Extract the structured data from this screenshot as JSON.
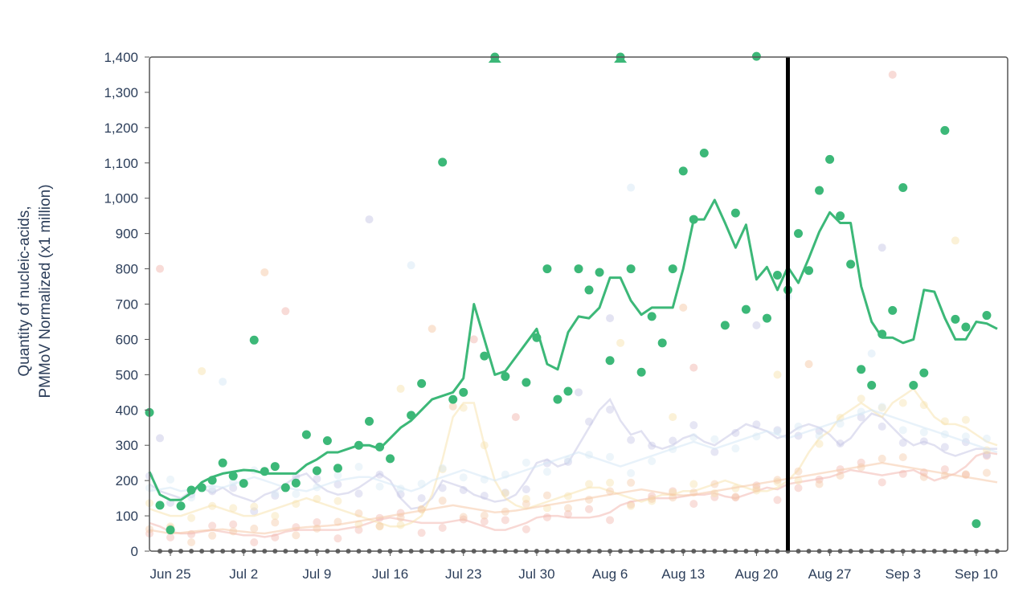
{
  "chart_data": {
    "type": "line",
    "ylabel_lines": [
      "Quantity of nucleic-acids,",
      "PMMoV Normalized (x1 million)"
    ],
    "xlabel": "",
    "ylim": [
      0,
      1400
    ],
    "yticks": [
      0,
      100,
      200,
      300,
      400,
      500,
      600,
      700,
      800,
      900,
      1000,
      1100,
      1200,
      1300,
      1400
    ],
    "ytick_labels": [
      "0",
      "100",
      "200",
      "300",
      "400",
      "500",
      "600",
      "700",
      "800",
      "900",
      "1,000",
      "1,100",
      "1,200",
      "1,300",
      "1,400"
    ],
    "xlim": [
      "2023-06-23",
      "2023-09-13"
    ],
    "xticks": [
      "2023-06-25",
      "2023-07-02",
      "2023-07-09",
      "2023-07-16",
      "2023-07-23",
      "2023-07-30",
      "2023-08-06",
      "2023-08-13",
      "2023-08-20",
      "2023-08-27",
      "2023-09-03",
      "2023-09-10"
    ],
    "xtick_labels": [
      "Jun 25",
      "Jul 2",
      "Jul 9",
      "Jul 16",
      "Jul 23",
      "Jul 30",
      "Aug 6",
      "Aug 13",
      "Aug 20",
      "Aug 27",
      "Sep 3",
      "Sep 10"
    ],
    "vertical_marker_date": "2023-08-23",
    "grid": false,
    "colors": {
      "highlight": "#3cb878",
      "marker_line": "#000000",
      "axis": "#555555",
      "text": "#2c3e5a",
      "zero_points": "#666666",
      "background_series": [
        "#f2b8b0",
        "#c8c8e6",
        "#f7e3b0",
        "#d6e8f5",
        "#f5c9a8"
      ]
    },
    "highlight_line": {
      "x": [
        "2023-06-23",
        "2023-06-24",
        "2023-06-25",
        "2023-06-26",
        "2023-06-27",
        "2023-06-28",
        "2023-06-29",
        "2023-06-30",
        "2023-07-01",
        "2023-07-02",
        "2023-07-03",
        "2023-07-04",
        "2023-07-05",
        "2023-07-06",
        "2023-07-07",
        "2023-07-08",
        "2023-07-09",
        "2023-07-10",
        "2023-07-11",
        "2023-07-12",
        "2023-07-13",
        "2023-07-14",
        "2023-07-15",
        "2023-07-16",
        "2023-07-17",
        "2023-07-18",
        "2023-07-19",
        "2023-07-20",
        "2023-07-21",
        "2023-07-22",
        "2023-07-23",
        "2023-07-24",
        "2023-07-25",
        "2023-07-26",
        "2023-07-27",
        "2023-07-28",
        "2023-07-29",
        "2023-07-30",
        "2023-07-31",
        "2023-08-01",
        "2023-08-02",
        "2023-08-03",
        "2023-08-04",
        "2023-08-05",
        "2023-08-06",
        "2023-08-07",
        "2023-08-08",
        "2023-08-09",
        "2023-08-10",
        "2023-08-11",
        "2023-08-12",
        "2023-08-13",
        "2023-08-14",
        "2023-08-15",
        "2023-08-16",
        "2023-08-17",
        "2023-08-18",
        "2023-08-19",
        "2023-08-20",
        "2023-08-21",
        "2023-08-22",
        "2023-08-23",
        "2023-08-24",
        "2023-08-25",
        "2023-08-26",
        "2023-08-27",
        "2023-08-28",
        "2023-08-29",
        "2023-08-30",
        "2023-08-31",
        "2023-09-01",
        "2023-09-02",
        "2023-09-03",
        "2023-09-04",
        "2023-09-05",
        "2023-09-06",
        "2023-09-07",
        "2023-09-08",
        "2023-09-09",
        "2023-09-10",
        "2023-09-11",
        "2023-09-12"
      ],
      "y": [
        225,
        160,
        145,
        145,
        165,
        195,
        210,
        220,
        225,
        230,
        228,
        220,
        220,
        220,
        220,
        245,
        260,
        280,
        280,
        290,
        300,
        300,
        290,
        320,
        350,
        370,
        400,
        430,
        440,
        450,
        490,
        700,
        600,
        500,
        510,
        550,
        590,
        630,
        530,
        515,
        620,
        665,
        660,
        690,
        775,
        775,
        710,
        670,
        690,
        690,
        690,
        800,
        940,
        940,
        995,
        930,
        860,
        925,
        770,
        805,
        740,
        805,
        760,
        830,
        905,
        960,
        930,
        930,
        750,
        650,
        605,
        605,
        590,
        600,
        740,
        735,
        660,
        600,
        600,
        650,
        645,
        630
      ]
    },
    "highlight_points": [
      {
        "x": "2023-06-23",
        "y": 393
      },
      {
        "x": "2023-06-24",
        "y": 130
      },
      {
        "x": "2023-06-25",
        "y": 60
      },
      {
        "x": "2023-06-26",
        "y": 128
      },
      {
        "x": "2023-06-27",
        "y": 173
      },
      {
        "x": "2023-06-28",
        "y": 180
      },
      {
        "x": "2023-06-29",
        "y": 201
      },
      {
        "x": "2023-06-30",
        "y": 250
      },
      {
        "x": "2023-07-01",
        "y": 213
      },
      {
        "x": "2023-07-02",
        "y": 192
      },
      {
        "x": "2023-07-03",
        "y": 598
      },
      {
        "x": "2023-07-04",
        "y": 226
      },
      {
        "x": "2023-07-05",
        "y": 240
      },
      {
        "x": "2023-07-06",
        "y": 180
      },
      {
        "x": "2023-07-07",
        "y": 193
      },
      {
        "x": "2023-07-08",
        "y": 330
      },
      {
        "x": "2023-07-09",
        "y": 228
      },
      {
        "x": "2023-07-10",
        "y": 313
      },
      {
        "x": "2023-07-11",
        "y": 235
      },
      {
        "x": "2023-07-13",
        "y": 300
      },
      {
        "x": "2023-07-14",
        "y": 368
      },
      {
        "x": "2023-07-15",
        "y": 295
      },
      {
        "x": "2023-07-16",
        "y": 262
      },
      {
        "x": "2023-07-18",
        "y": 385
      },
      {
        "x": "2023-07-19",
        "y": 475
      },
      {
        "x": "2023-07-21",
        "y": 1102
      },
      {
        "x": "2023-07-22",
        "y": 430
      },
      {
        "x": "2023-07-23",
        "y": 450
      },
      {
        "x": "2023-07-25",
        "y": 553
      },
      {
        "x": "2023-07-26",
        "y": 1400
      },
      {
        "x": "2023-07-27",
        "y": 495
      },
      {
        "x": "2023-07-29",
        "y": 478
      },
      {
        "x": "2023-07-30",
        "y": 605
      },
      {
        "x": "2023-07-31",
        "y": 800
      },
      {
        "x": "2023-08-01",
        "y": 430
      },
      {
        "x": "2023-08-02",
        "y": 453
      },
      {
        "x": "2023-08-03",
        "y": 800
      },
      {
        "x": "2023-08-04",
        "y": 740
      },
      {
        "x": "2023-08-05",
        "y": 790
      },
      {
        "x": "2023-08-06",
        "y": 540
      },
      {
        "x": "2023-08-07",
        "y": 1400
      },
      {
        "x": "2023-08-08",
        "y": 800
      },
      {
        "x": "2023-08-09",
        "y": 507
      },
      {
        "x": "2023-08-10",
        "y": 665
      },
      {
        "x": "2023-08-11",
        "y": 590
      },
      {
        "x": "2023-08-12",
        "y": 800
      },
      {
        "x": "2023-08-13",
        "y": 1077
      },
      {
        "x": "2023-08-14",
        "y": 940
      },
      {
        "x": "2023-08-15",
        "y": 1128
      },
      {
        "x": "2023-08-17",
        "y": 640
      },
      {
        "x": "2023-08-18",
        "y": 958
      },
      {
        "x": "2023-08-19",
        "y": 685
      },
      {
        "x": "2023-08-20",
        "y": 1402
      },
      {
        "x": "2023-08-21",
        "y": 660
      },
      {
        "x": "2023-08-22",
        "y": 782
      },
      {
        "x": "2023-08-23",
        "y": 740
      },
      {
        "x": "2023-08-24",
        "y": 900
      },
      {
        "x": "2023-08-25",
        "y": 795
      },
      {
        "x": "2023-08-26",
        "y": 1022
      },
      {
        "x": "2023-08-27",
        "y": 1110
      },
      {
        "x": "2023-08-28",
        "y": 950
      },
      {
        "x": "2023-08-29",
        "y": 813
      },
      {
        "x": "2023-08-30",
        "y": 515
      },
      {
        "x": "2023-08-31",
        "y": 470
      },
      {
        "x": "2023-09-01",
        "y": 615
      },
      {
        "x": "2023-09-02",
        "y": 682
      },
      {
        "x": "2023-09-03",
        "y": 1030
      },
      {
        "x": "2023-09-04",
        "y": 470
      },
      {
        "x": "2023-09-05",
        "y": 505
      },
      {
        "x": "2023-09-07",
        "y": 1192
      },
      {
        "x": "2023-09-08",
        "y": 657
      },
      {
        "x": "2023-09-09",
        "y": 635
      },
      {
        "x": "2023-09-10",
        "y": 78
      },
      {
        "x": "2023-09-11",
        "y": 668
      }
    ],
    "triangle_markers": [
      {
        "x": "2023-07-26",
        "y": 1400
      },
      {
        "x": "2023-08-07",
        "y": 1400
      }
    ],
    "background_series": [
      {
        "x_start": "2023-06-23",
        "y": [
          80,
          70,
          55,
          50,
          50,
          55,
          60,
          55,
          50,
          45,
          45,
          40,
          45,
          55,
          60,
          60,
          60,
          60,
          60,
          65,
          70,
          80,
          90,
          95,
          90,
          85,
          80,
          80,
          80,
          85,
          90,
          80,
          70,
          60,
          60,
          70,
          80,
          95,
          100,
          100,
          95,
          95,
          95,
          100,
          110,
          130,
          140,
          145,
          150,
          150,
          150,
          155,
          160,
          160,
          165,
          155,
          150,
          160,
          170,
          180,
          175,
          190,
          195,
          200,
          205,
          210,
          220,
          230,
          225,
          220,
          215,
          220,
          225,
          230,
          215,
          200,
          210,
          220,
          240,
          270,
          280,
          275
        ]
      },
      {
        "x_start": "2023-06-23",
        "y": [
          190,
          170,
          160,
          150,
          170,
          180,
          165,
          180,
          160,
          150,
          140,
          160,
          170,
          190,
          210,
          220,
          190,
          170,
          160,
          165,
          180,
          200,
          220,
          200,
          150,
          120,
          125,
          150,
          200,
          190,
          180,
          160,
          150,
          140,
          145,
          160,
          200,
          250,
          260,
          240,
          250,
          300,
          350,
          400,
          430,
          370,
          330,
          340,
          300,
          290,
          300,
          320,
          330,
          310,
          300,
          320,
          340,
          360,
          350,
          340,
          320,
          330,
          350,
          360,
          350,
          330,
          300,
          320,
          360,
          390,
          380,
          350,
          320,
          300,
          310,
          300,
          280,
          270,
          280,
          290,
          290,
          290
        ]
      },
      {
        "x_start": "2023-06-23",
        "y": [
          120,
          110,
          100,
          100,
          110,
          120,
          130,
          120,
          110,
          100,
          100,
          110,
          120,
          130,
          140,
          150,
          140,
          130,
          120,
          110,
          100,
          90,
          80,
          70,
          70,
          80,
          100,
          160,
          260,
          380,
          420,
          420,
          300,
          200,
          150,
          130,
          120,
          130,
          140,
          150,
          160,
          170,
          180,
          180,
          170,
          160,
          150,
          140,
          150,
          160,
          160,
          170,
          170,
          180,
          190,
          200,
          190,
          180,
          170,
          170,
          180,
          200,
          230,
          280,
          320,
          340,
          380,
          400,
          420,
          400,
          380,
          420,
          440,
          460,
          420,
          380,
          360,
          360,
          350,
          330,
          310,
          300
        ]
      },
      {
        "x_start": "2023-06-23",
        "y": [
          170,
          175,
          180,
          170,
          175,
          180,
          185,
          180,
          190,
          200,
          210,
          200,
          190,
          180,
          175,
          170,
          180,
          190,
          200,
          205,
          210,
          210,
          200,
          190,
          180,
          170,
          180,
          200,
          210,
          220,
          230,
          220,
          210,
          200,
          210,
          220,
          230,
          240,
          250,
          260,
          270,
          280,
          270,
          260,
          250,
          240,
          250,
          260,
          270,
          280,
          290,
          300,
          310,
          300,
          290,
          300,
          310,
          320,
          330,
          340,
          330,
          320,
          330,
          340,
          350,
          360,
          370,
          380,
          390,
          400,
          390,
          380,
          370,
          360,
          350,
          340,
          330,
          320,
          310,
          300,
          290,
          280
        ]
      },
      {
        "x_start": "2023-06-23",
        "y": [
          60,
          55,
          50,
          52,
          55,
          58,
          60,
          62,
          58,
          55,
          52,
          50,
          55,
          60,
          65,
          68,
          70,
          72,
          75,
          80,
          85,
          90,
          95,
          100,
          105,
          110,
          115,
          120,
          125,
          130,
          125,
          120,
          115,
          110,
          112,
          115,
          120,
          125,
          130,
          135,
          140,
          145,
          150,
          155,
          160,
          165,
          170,
          175,
          170,
          165,
          160,
          158,
          160,
          165,
          170,
          175,
          180,
          185,
          190,
          195,
          200,
          205,
          210,
          215,
          220,
          225,
          230,
          235,
          240,
          245,
          250,
          245,
          240,
          235,
          230,
          225,
          220,
          215,
          210,
          205,
          200,
          195
        ]
      }
    ],
    "background_points": [
      {
        "x": "2023-06-24",
        "y": 800
      },
      {
        "x": "2023-06-24",
        "y": 320
      },
      {
        "x": "2023-06-28",
        "y": 510
      },
      {
        "x": "2023-06-30",
        "y": 480
      },
      {
        "x": "2023-07-04",
        "y": 790
      },
      {
        "x": "2023-07-06",
        "y": 680
      },
      {
        "x": "2023-07-14",
        "y": 940
      },
      {
        "x": "2023-07-17",
        "y": 460
      },
      {
        "x": "2023-07-18",
        "y": 810
      },
      {
        "x": "2023-07-20",
        "y": 630
      },
      {
        "x": "2023-07-24",
        "y": 600
      },
      {
        "x": "2023-08-06",
        "y": 660
      },
      {
        "x": "2023-08-07",
        "y": 590
      },
      {
        "x": "2023-08-08",
        "y": 1030
      },
      {
        "x": "2023-08-13",
        "y": 690
      },
      {
        "x": "2023-08-14",
        "y": 520
      },
      {
        "x": "2023-08-20",
        "y": 640
      },
      {
        "x": "2023-08-22",
        "y": 500
      },
      {
        "x": "2023-08-23",
        "y": 720
      },
      {
        "x": "2023-08-25",
        "y": 530
      },
      {
        "x": "2023-09-02",
        "y": 1350
      },
      {
        "x": "2023-09-01",
        "y": 860
      },
      {
        "x": "2023-09-08",
        "y": 880
      },
      {
        "x": "2023-08-31",
        "y": 560
      },
      {
        "x": "2023-07-22",
        "y": 410
      },
      {
        "x": "2023-07-28",
        "y": 380
      },
      {
        "x": "2023-08-03",
        "y": 450
      },
      {
        "x": "2023-08-12",
        "y": 380
      }
    ],
    "zero_row_value": 0
  }
}
